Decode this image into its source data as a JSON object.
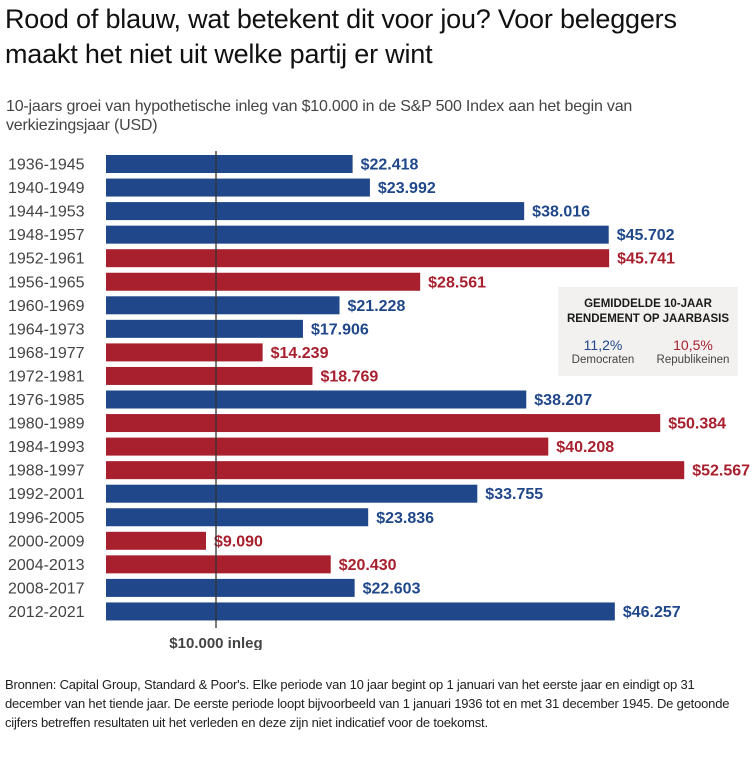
{
  "headline": "Rood of blauw, wat betekent dit voor jou? Voor beleggers maakt het niet uit welke partij er wint",
  "colors": {
    "democrat": "#1f4789",
    "republican": "#a81f2d",
    "baseline": "#333333",
    "label_text": "#444444"
  },
  "legend": {
    "title_line1": "GEMIDDELDE 10-JAAR",
    "title_line2": "RENDEMENT OP JAARBASIS",
    "democrat_pct": "11,2%",
    "democrat_label": "Democraten",
    "republican_pct": "10,5%",
    "republican_label": "Republikeinen"
  },
  "chart_data": {
    "type": "bar",
    "orientation": "horizontal",
    "title": "10-jaars groei van hypothetische inleg van $10.000 in de S&P 500 Index aan het begin van verkiezingsjaar (USD)",
    "xlabel": "",
    "ylabel": "",
    "xlim": [
      0,
      55000
    ],
    "grid": false,
    "reference_line": {
      "value": 10000,
      "label": "$10.000 inleg"
    },
    "categories": [
      "1936-1945",
      "1940-1949",
      "1944-1953",
      "1948-1957",
      "1952-1961",
      "1956-1965",
      "1960-1969",
      "1964-1973",
      "1968-1977",
      "1972-1981",
      "1976-1985",
      "1980-1989",
      "1984-1993",
      "1988-1997",
      "1992-2001",
      "1996-2005",
      "2000-2009",
      "2004-2013",
      "2008-2017",
      "2012-2021"
    ],
    "values": [
      22418,
      23992,
      38016,
      45702,
      45741,
      28561,
      21228,
      17906,
      14239,
      18769,
      38207,
      50384,
      40208,
      52567,
      33755,
      23836,
      9090,
      20430,
      22603,
      46257
    ],
    "value_labels": [
      "$22.418",
      "$23.992",
      "$38.016",
      "$45.702",
      "$45.741",
      "$28.561",
      "$21.228",
      "$17.906",
      "$14.239",
      "$18.769",
      "$38.207",
      "$50.384",
      "$40.208",
      "$52.567",
      "$33.755",
      "$23.836",
      "$9.090",
      "$20.430",
      "$22.603",
      "$46.257"
    ],
    "party": [
      "D",
      "D",
      "D",
      "D",
      "R",
      "R",
      "D",
      "D",
      "R",
      "R",
      "D",
      "R",
      "R",
      "R",
      "D",
      "D",
      "R",
      "R",
      "D",
      "D"
    ],
    "legend": [
      "Democraten",
      "Republikeinen"
    ],
    "legend_position": "right"
  },
  "footnote": "Bronnen: Capital Group, Standard & Poor's. Elke periode van 10 jaar begint op 1 januari van het eerste jaar en eindigt op 31 december van het tiende jaar. De eerste periode loopt bijvoorbeeld van 1 januari 1936 tot en met 31 december 1945. De getoonde cijfers betreffen resultaten uit het verleden en deze zijn niet indicatief voor de toekomst."
}
